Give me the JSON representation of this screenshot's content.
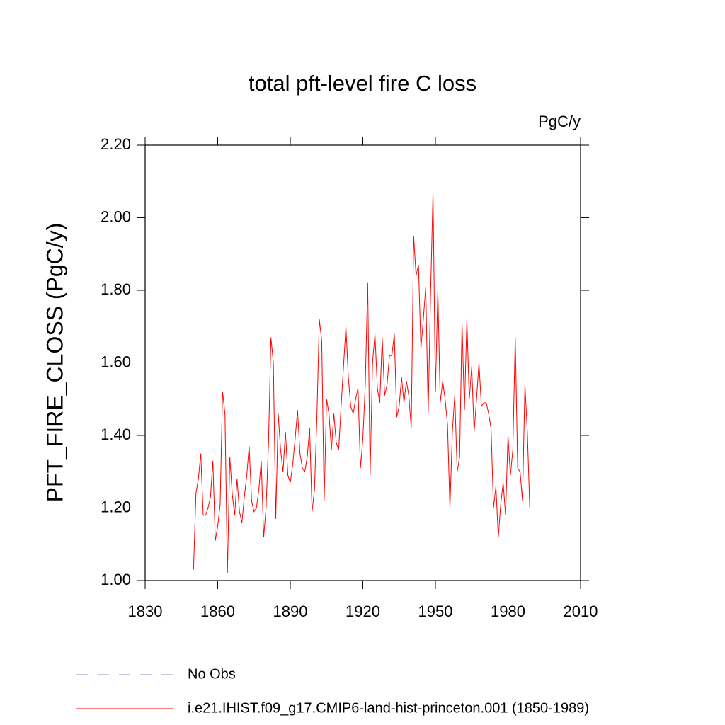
{
  "chart_data": {
    "type": "line",
    "title": "total pft-level fire C loss",
    "units": "PgC/y",
    "y_label": "PFT_FIRE_CLOSS  (PgC/y)",
    "xlim": [
      1830,
      2010
    ],
    "xticks": [
      1830,
      1860,
      1890,
      1920,
      1950,
      1980,
      2010
    ],
    "ylim": [
      1.0,
      2.2
    ],
    "yticks": [
      {
        "value": 1.0,
        "label": "1.00"
      },
      {
        "value": 1.2,
        "label": "1.20"
      },
      {
        "value": 1.4,
        "label": "1.40"
      },
      {
        "value": 1.6,
        "label": "1.60"
      },
      {
        "value": 1.8,
        "label": "1.80"
      },
      {
        "value": 2.0,
        "label": "2.00"
      },
      {
        "value": 2.2,
        "label": "2.20"
      }
    ],
    "reference": {
      "name": "No Obs",
      "color": "#8c8cc8",
      "style": "dashed"
    },
    "x": [
      1850,
      1851,
      1852,
      1853,
      1854,
      1855,
      1856,
      1857,
      1858,
      1859,
      1860,
      1861,
      1862,
      1863,
      1864,
      1865,
      1866,
      1867,
      1868,
      1869,
      1870,
      1871,
      1872,
      1873,
      1874,
      1875,
      1876,
      1877,
      1878,
      1879,
      1880,
      1881,
      1882,
      1883,
      1884,
      1885,
      1886,
      1887,
      1888,
      1889,
      1890,
      1891,
      1892,
      1893,
      1894,
      1895,
      1896,
      1897,
      1898,
      1899,
      1900,
      1901,
      1902,
      1903,
      1904,
      1905,
      1906,
      1907,
      1908,
      1909,
      1910,
      1911,
      1912,
      1913,
      1914,
      1915,
      1916,
      1917,
      1918,
      1919,
      1920,
      1921,
      1922,
      1923,
      1924,
      1925,
      1926,
      1927,
      1928,
      1929,
      1930,
      1931,
      1932,
      1933,
      1934,
      1935,
      1936,
      1937,
      1938,
      1939,
      1940,
      1941,
      1942,
      1943,
      1944,
      1945,
      1946,
      1947,
      1948,
      1949,
      1950,
      1951,
      1952,
      1953,
      1954,
      1955,
      1956,
      1957,
      1958,
      1959,
      1960,
      1961,
      1962,
      1963,
      1964,
      1965,
      1966,
      1967,
      1968,
      1969,
      1970,
      1971,
      1972,
      1973,
      1974,
      1975,
      1976,
      1977,
      1978,
      1979,
      1980,
      1981,
      1982,
      1983,
      1984,
      1985,
      1986,
      1987,
      1988,
      1989
    ],
    "series": [
      {
        "name": "i.e21.IHIST.f09_g17.CMIP6-land-hist-princeton.001 (1850-1989)",
        "color": "#ff0000",
        "values": [
          1.03,
          1.24,
          1.28,
          1.35,
          1.18,
          1.18,
          1.2,
          1.23,
          1.33,
          1.11,
          1.15,
          1.21,
          1.52,
          1.46,
          1.02,
          1.34,
          1.24,
          1.18,
          1.28,
          1.19,
          1.16,
          1.23,
          1.29,
          1.37,
          1.22,
          1.19,
          1.2,
          1.25,
          1.33,
          1.12,
          1.2,
          1.38,
          1.67,
          1.6,
          1.17,
          1.46,
          1.36,
          1.3,
          1.41,
          1.29,
          1.27,
          1.32,
          1.39,
          1.47,
          1.35,
          1.31,
          1.3,
          1.34,
          1.42,
          1.19,
          1.25,
          1.45,
          1.72,
          1.66,
          1.22,
          1.5,
          1.46,
          1.36,
          1.46,
          1.38,
          1.36,
          1.48,
          1.59,
          1.7,
          1.56,
          1.48,
          1.46,
          1.5,
          1.53,
          1.31,
          1.39,
          1.54,
          1.82,
          1.29,
          1.6,
          1.68,
          1.53,
          1.49,
          1.67,
          1.51,
          1.54,
          1.62,
          1.62,
          1.68,
          1.45,
          1.48,
          1.56,
          1.49,
          1.55,
          1.51,
          1.42,
          1.95,
          1.84,
          1.87,
          1.64,
          1.72,
          1.81,
          1.46,
          1.79,
          2.07,
          1.52,
          1.8,
          1.49,
          1.55,
          1.5,
          1.43,
          1.2,
          1.41,
          1.51,
          1.3,
          1.34,
          1.71,
          1.47,
          1.72,
          1.5,
          1.59,
          1.41,
          1.5,
          1.6,
          1.48,
          1.49,
          1.49,
          1.46,
          1.42,
          1.2,
          1.26,
          1.12,
          1.21,
          1.27,
          1.18,
          1.4,
          1.29,
          1.36,
          1.67,
          1.31,
          1.3,
          1.22,
          1.54,
          1.41,
          1.2
        ]
      }
    ]
  }
}
